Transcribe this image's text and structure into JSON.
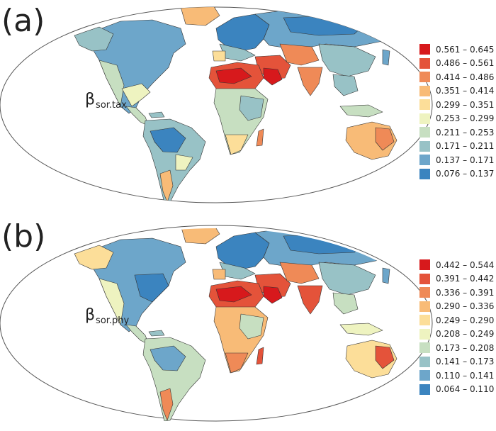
{
  "palette": [
    "#d7191c",
    "#e4533a",
    "#ef8a57",
    "#f8bb77",
    "#fcde99",
    "#eef3c0",
    "#c7dfc1",
    "#98c2c6",
    "#6da6ca",
    "#3b84bf"
  ],
  "panels": [
    {
      "letter": "(a)",
      "metric_main": "β",
      "metric_sub": "sor.tax",
      "legend": [
        "0.561 – 0.645",
        "0.486 – 0.561",
        "0.414 – 0.486",
        "0.351 – 0.414",
        "0.299 – 0.351",
        "0.253 – 0.299",
        "0.211 – 0.253",
        "0.171 – 0.211",
        "0.137 – 0.171",
        "0.076 – 0.137"
      ]
    },
    {
      "letter": "(b)",
      "metric_main": "β",
      "metric_sub": "sor.phy",
      "legend": [
        "0.442 – 0.544",
        "0.391 – 0.442",
        "0.336 – 0.391",
        "0.290 – 0.336",
        "0.249 – 0.290",
        "0.208 – 0.249",
        "0.173 – 0.208",
        "0.141 – 0.173",
        "0.110 – 0.141",
        "0.064 – 0.110"
      ]
    }
  ]
}
